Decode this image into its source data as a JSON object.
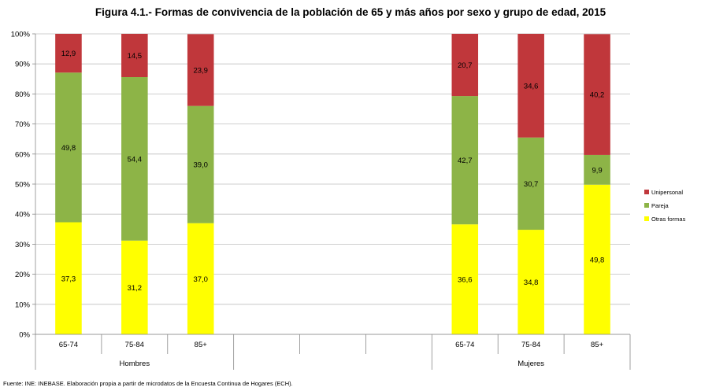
{
  "chart_data": {
    "type": "bar",
    "stacked": true,
    "title": "Figura 4.1.- Formas de convivencia de la población de 65 y más años por sexo y grupo de edad, 2015",
    "ylim": [
      0,
      100
    ],
    "yticks": [
      "0%",
      "10%",
      "20%",
      "30%",
      "40%",
      "50%",
      "60%",
      "70%",
      "80%",
      "90%",
      "100%"
    ],
    "groups": [
      {
        "name": "Hombres",
        "categories": [
          "65-74",
          "75-84",
          "85+"
        ]
      },
      {
        "name": "",
        "categories": [
          "",
          "",
          ""
        ]
      },
      {
        "name": "Mujeres",
        "categories": [
          "65-74",
          "75-84",
          "85+"
        ]
      }
    ],
    "series": [
      {
        "name": "Otras formas",
        "color": "#ffff00",
        "values": [
          37.3,
          31.2,
          37.0,
          null,
          null,
          null,
          36.6,
          34.8,
          49.8
        ],
        "labels": [
          "37,3",
          "31,2",
          "37,0",
          "",
          "",
          "",
          "36,6",
          "34,8",
          "49,8"
        ]
      },
      {
        "name": "Pareja",
        "color": "#8db447",
        "values": [
          49.8,
          54.4,
          39.0,
          null,
          null,
          null,
          42.7,
          30.7,
          9.9
        ],
        "labels": [
          "49,8",
          "54,4",
          "39,0",
          "",
          "",
          "",
          "42,7",
          "30,7",
          "9,9"
        ]
      },
      {
        "name": "Unipersonal",
        "color": "#c0373b",
        "values": [
          12.9,
          14.5,
          23.9,
          null,
          null,
          null,
          20.7,
          34.6,
          40.2
        ],
        "labels": [
          "12,9",
          "14,5",
          "23,9",
          "",
          "",
          "",
          "20,7",
          "34,6",
          "40,2"
        ]
      }
    ],
    "legend": {
      "position": "right",
      "order": [
        "Unipersonal",
        "Pareja",
        "Otras formas"
      ]
    },
    "grid": true
  },
  "source": "Fuente: INE: INEBASE. Elaboración propia a partir de microdatos de la Encuesta Continua de Hogares (ECH)."
}
